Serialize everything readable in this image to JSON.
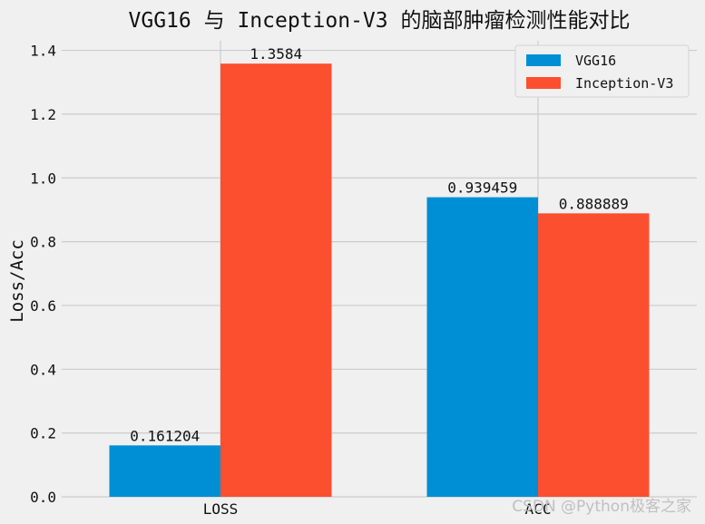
{
  "chart_data": {
    "type": "bar",
    "title": "VGG16 与 Inception-V3 的脑部肿瘤检测性能对比",
    "xlabel": "",
    "ylabel": "Loss/Acc",
    "categories": [
      "LOSS",
      "ACC"
    ],
    "series": [
      {
        "name": "VGG16",
        "values": [
          0.161204,
          0.939459
        ],
        "labels": [
          "0.161204",
          "0.939459"
        ]
      },
      {
        "name": "Inception-V3",
        "values": [
          1.3584,
          0.888889
        ],
        "labels": [
          "1.3584",
          "0.888889"
        ]
      }
    ],
    "ylim": [
      0,
      1.43
    ],
    "yticks": [
      0.0,
      0.2,
      0.4,
      0.6,
      0.8,
      1.0,
      1.2,
      1.4
    ],
    "ytick_labels": [
      "0.0",
      "0.2",
      "0.4",
      "0.6",
      "0.8",
      "1.0",
      "1.2",
      "1.4"
    ],
    "grid": true,
    "legend_position": "top-right"
  },
  "colors": {
    "background": "#f0f0f0",
    "grid": "#cbcbcb",
    "series": [
      "#008fd5",
      "#fc4f30"
    ]
  },
  "watermark": "CSDN @Python极客之家"
}
